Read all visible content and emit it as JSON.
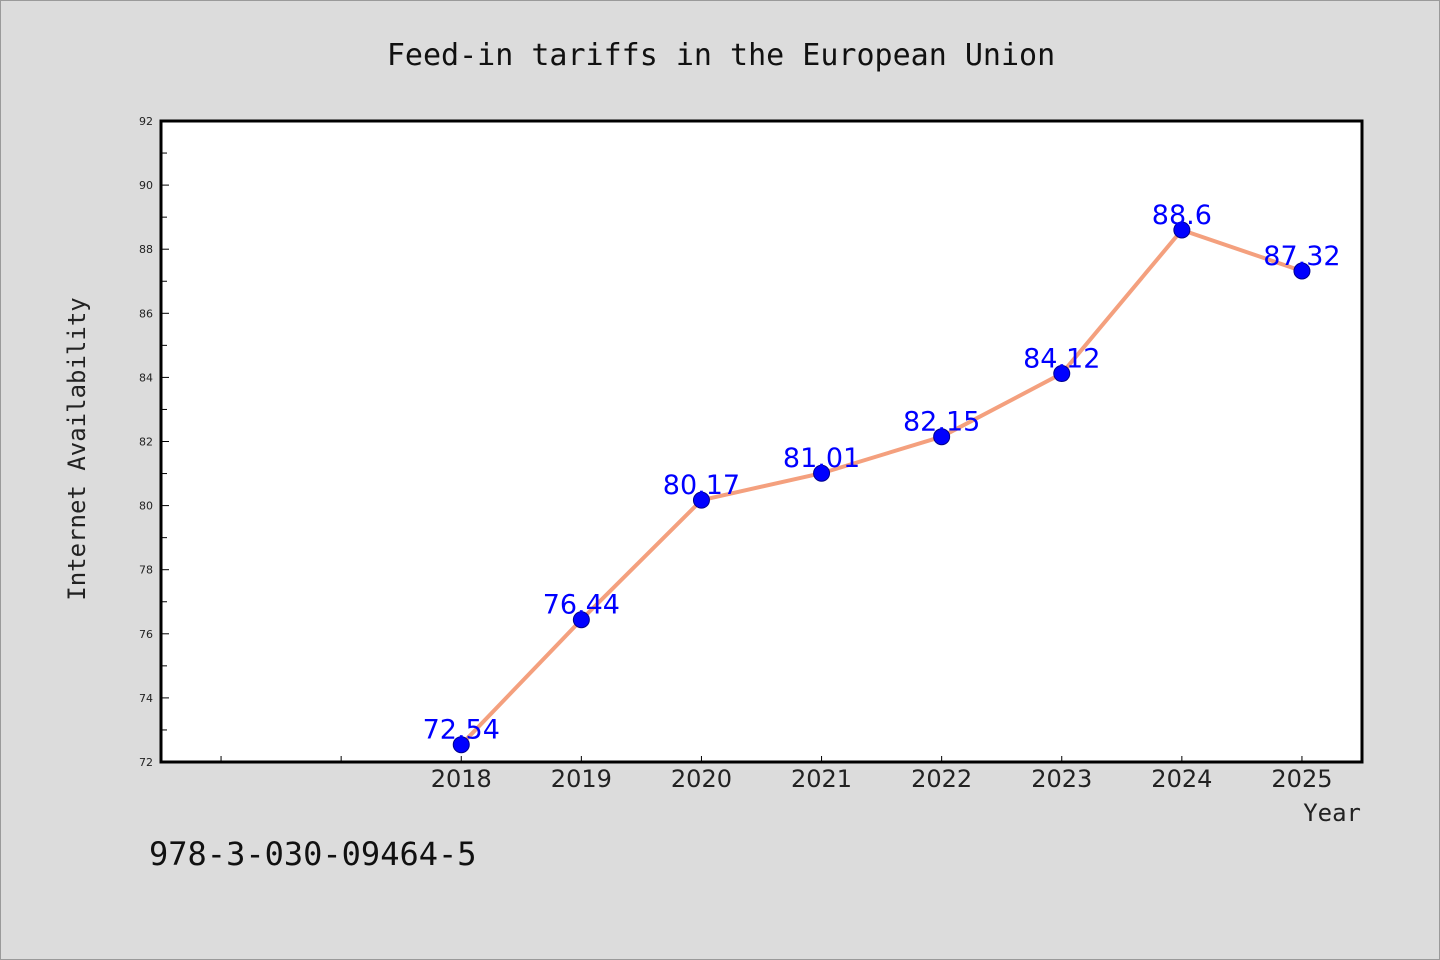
{
  "chart_data": {
    "type": "line",
    "title": "Feed-in tariffs in the European Union",
    "xlabel": "Year",
    "ylabel": "Internet Availability",
    "x": [
      "2018",
      "2019",
      "2020",
      "2021",
      "2022",
      "2023",
      "2024",
      "2025"
    ],
    "values": [
      72.54,
      76.44,
      80.17,
      81.01,
      82.15,
      84.12,
      88.6,
      87.32
    ],
    "data_labels": [
      "72.54",
      "76.44",
      "80.17",
      "81.01",
      "82.15",
      "84.12",
      "88.6",
      "87.32"
    ],
    "ylim": [
      72,
      92
    ],
    "yticks": [
      "72",
      "74",
      "76",
      "78",
      "80",
      "82",
      "84",
      "86",
      "88",
      "90",
      "92"
    ],
    "xlim": [
      2015.5,
      2025.5
    ],
    "grid": false,
    "legend": "none",
    "line_color": "#f4a07e",
    "marker_color": "#0000ff",
    "label_color": "#0000ff"
  },
  "footer": {
    "isbn": "978-3-030-09464-5"
  }
}
